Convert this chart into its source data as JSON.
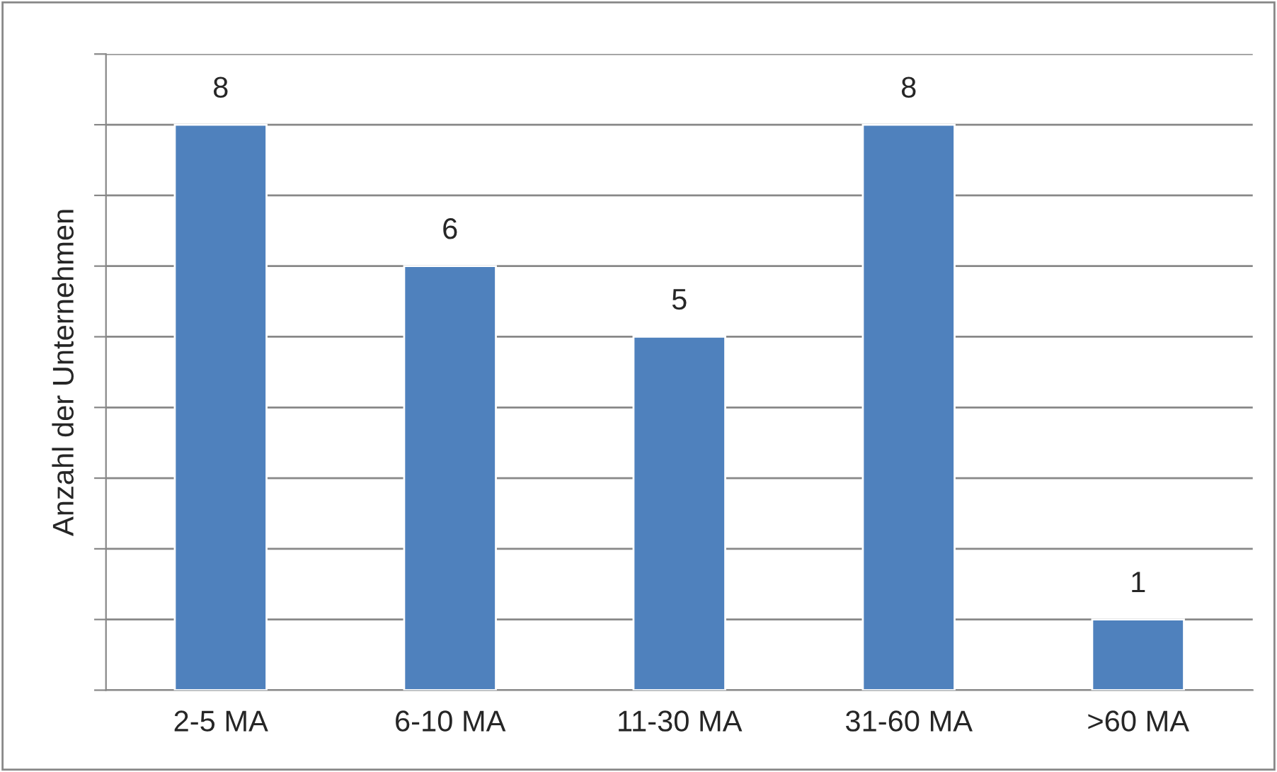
{
  "chart_data": {
    "type": "bar",
    "ylabel": "Anzahl der Unternehmen",
    "categories": [
      "2-5 MA",
      "6-10 MA",
      "11-30 MA",
      "31-60 MA",
      ">60 MA"
    ],
    "values": [
      8,
      6,
      5,
      8,
      1
    ],
    "color": "#4f81bd",
    "ylim": [
      0,
      9
    ],
    "yticks": [
      {
        "value": 0,
        "label": null
      },
      {
        "value": 1,
        "label": null
      },
      {
        "value": 2,
        "label": null
      },
      {
        "value": 3,
        "label": null
      },
      {
        "value": 4,
        "label": null
      },
      {
        "value": 5,
        "label": null
      },
      {
        "value": 6,
        "label": null
      },
      {
        "value": 7,
        "label": null
      },
      {
        "value": 8,
        "label": null
      },
      {
        "value": 9,
        "label": null
      }
    ],
    "tick_labels": "x",
    "grid": "y",
    "data_labels": true,
    "legend": false
  }
}
